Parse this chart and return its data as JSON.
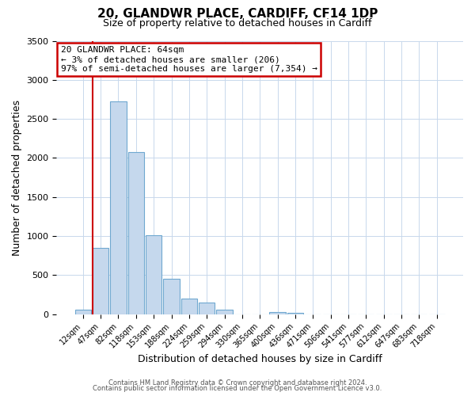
{
  "title": "20, GLANDWR PLACE, CARDIFF, CF14 1DP",
  "subtitle": "Size of property relative to detached houses in Cardiff",
  "xlabel": "Distribution of detached houses by size in Cardiff",
  "ylabel": "Number of detached properties",
  "bar_labels": [
    "12sqm",
    "47sqm",
    "82sqm",
    "118sqm",
    "153sqm",
    "188sqm",
    "224sqm",
    "259sqm",
    "294sqm",
    "330sqm",
    "365sqm",
    "400sqm",
    "436sqm",
    "471sqm",
    "506sqm",
    "541sqm",
    "577sqm",
    "612sqm",
    "647sqm",
    "683sqm",
    "718sqm"
  ],
  "bar_values": [
    55,
    850,
    2720,
    2080,
    1010,
    455,
    200,
    145,
    55,
    0,
    0,
    30,
    20,
    0,
    0,
    0,
    0,
    0,
    0,
    0,
    0
  ],
  "highlight_bar_index": 1,
  "highlight_color": "#cc0000",
  "normal_bar_color": "#c5d8ed",
  "bar_edge_color": "#6fa8d0",
  "ylim": [
    0,
    3500
  ],
  "yticks": [
    0,
    500,
    1000,
    1500,
    2000,
    2500,
    3000,
    3500
  ],
  "annotation_title": "20 GLANDWR PLACE: 64sqm",
  "annotation_line1": "← 3% of detached houses are smaller (206)",
  "annotation_line2": "97% of semi-detached houses are larger (7,354) →",
  "annotation_box_color": "#ffffff",
  "annotation_box_edge": "#cc0000",
  "footer_line1": "Contains HM Land Registry data © Crown copyright and database right 2024.",
  "footer_line2": "Contains public sector information licensed under the Open Government Licence v3.0.",
  "background_color": "#ffffff",
  "grid_color": "#c8d8ec",
  "title_fontsize": 11,
  "subtitle_fontsize": 9
}
